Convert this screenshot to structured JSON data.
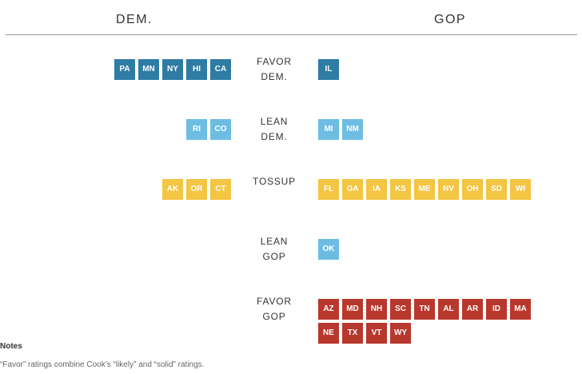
{
  "header": {
    "dem": "DEM.",
    "gop": "GOP"
  },
  "chart_data": {
    "type": "table",
    "title": "",
    "colors": {
      "favor_dem": "#2e7ca3",
      "lean_dem": "#6dbde3",
      "tossup": "#f4c542",
      "lean_gop": "#6dbde3",
      "favor_gop": "#b8382d"
    },
    "rows": [
      {
        "key": "favor_dem",
        "label": [
          "FAVOR",
          "DEM."
        ],
        "dem": [
          "PA",
          "MN",
          "NY",
          "HI",
          "CA"
        ],
        "gop": [
          "IL"
        ]
      },
      {
        "key": "lean_dem",
        "label": [
          "LEAN",
          "DEM."
        ],
        "dem": [
          "RI",
          "CO"
        ],
        "gop": [
          "MI",
          "NM"
        ]
      },
      {
        "key": "tossup",
        "label": [
          "TOSSUP"
        ],
        "dem": [
          "AK",
          "OR",
          "CT"
        ],
        "gop": [
          "FL",
          "GA",
          "IA",
          "KS",
          "ME",
          "NV",
          "OH",
          "SD",
          "WI"
        ]
      },
      {
        "key": "lean_gop",
        "label": [
          "LEAN",
          "GOP"
        ],
        "dem": [],
        "gop": [
          "OK"
        ]
      },
      {
        "key": "favor_gop",
        "label": [
          "FAVOR",
          "GOP"
        ],
        "dem": [],
        "gop": [
          "AZ",
          "MD",
          "NH",
          "SC",
          "TN",
          "AL",
          "AR",
          "ID",
          "MA",
          "NE",
          "TX",
          "VT",
          "WY"
        ]
      }
    ]
  },
  "notes": {
    "title": "Notes",
    "text": "“Favor” ratings combine Cook’s “likely” and “solid” ratings."
  }
}
